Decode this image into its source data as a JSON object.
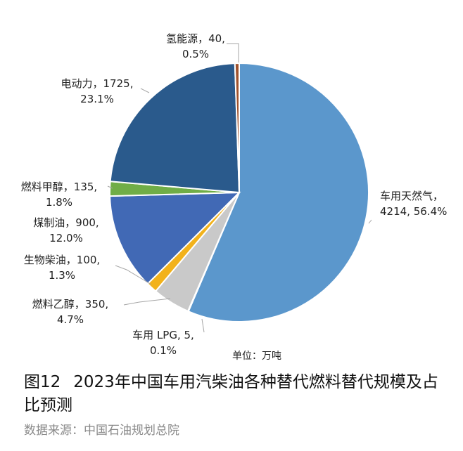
{
  "figure": {
    "number": "图12",
    "title": "2023年中国车用汽柴油各种替代燃料替代规模及占比预测",
    "source": "数据来源：中国石油规划总院"
  },
  "chart_data": {
    "type": "pie",
    "unit_label": "单位：万吨",
    "start": "clockwise from top",
    "slices": [
      {
        "name": "车用天然气",
        "value": 4214,
        "percent": "56.4%",
        "color": "#5B97CC",
        "label_lines": [
          "车用天然气，",
          "4214, 56.4%"
        ]
      },
      {
        "name": "车用LPG",
        "value": 5,
        "percent": "0.1%",
        "color": "#A9A9A9",
        "label_lines": [
          "车用 LPG, 5,",
          "0.1%"
        ]
      },
      {
        "name": "燃料乙醇",
        "value": 350,
        "percent": "4.7%",
        "color": "#C9C9C9",
        "label_lines": [
          "燃料乙醇，350,",
          "4.7%"
        ]
      },
      {
        "name": "生物柴油",
        "value": 100,
        "percent": "1.3%",
        "color": "#F2B21B",
        "label_lines": [
          "生物柴油，100,",
          "1.3%"
        ]
      },
      {
        "name": "煤制油",
        "value": 900,
        "percent": "12.0%",
        "color": "#4169B5",
        "label_lines": [
          "煤制油，900,",
          "12.0%"
        ]
      },
      {
        "name": "燃料甲醇",
        "value": 135,
        "percent": "1.8%",
        "color": "#70AD47",
        "label_lines": [
          "燃料甲醇，135,",
          "1.8%"
        ]
      },
      {
        "name": "电动力",
        "value": 1725,
        "percent": "23.1%",
        "color": "#2A5A8C",
        "label_lines": [
          "电动力，1725,",
          "23.1%"
        ]
      },
      {
        "name": "氢能源",
        "value": 40,
        "percent": "0.5%",
        "color": "#A0522D",
        "label_lines": [
          "氢能源，40,",
          "0.5%"
        ]
      }
    ]
  }
}
